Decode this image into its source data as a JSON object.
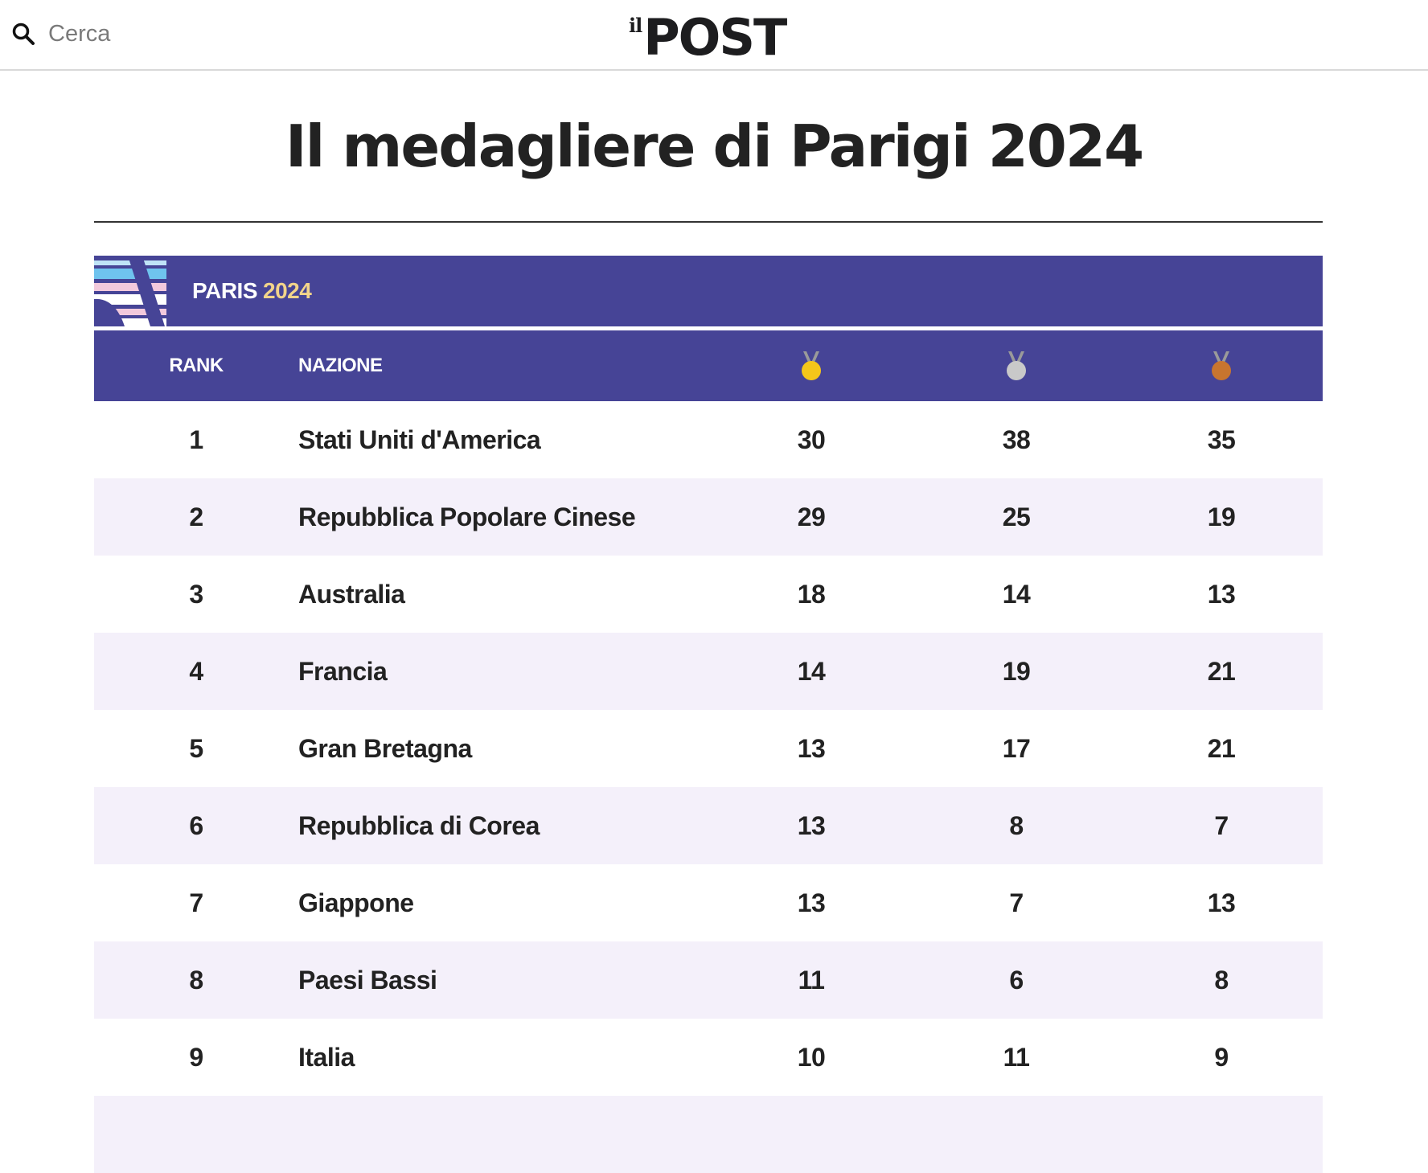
{
  "header": {
    "search_label": "Cerca",
    "logo_il": "il",
    "logo_post": "POST"
  },
  "headline": "Il medagliere di Parigi 2024",
  "widget": {
    "brand_paris": "PARIS",
    "brand_year": "2024",
    "columns": {
      "rank": "RANK",
      "nation": "NAZIONE"
    },
    "medal_icons": {
      "gold": "#f4c61a",
      "silver": "#c9c9c9",
      "bronze": "#c8752f",
      "ribbon": "#9a9a9a"
    },
    "rows": [
      {
        "rank": "1",
        "nation": "Stati Uniti d'America",
        "gold": "30",
        "silver": "38",
        "bronze": "35"
      },
      {
        "rank": "2",
        "nation": "Repubblica Popolare Cinese",
        "gold": "29",
        "silver": "25",
        "bronze": "19"
      },
      {
        "rank": "3",
        "nation": "Australia",
        "gold": "18",
        "silver": "14",
        "bronze": "13"
      },
      {
        "rank": "4",
        "nation": "Francia",
        "gold": "14",
        "silver": "19",
        "bronze": "21"
      },
      {
        "rank": "5",
        "nation": "Gran Bretagna",
        "gold": "13",
        "silver": "17",
        "bronze": "21"
      },
      {
        "rank": "6",
        "nation": "Repubblica di Corea",
        "gold": "13",
        "silver": "8",
        "bronze": "7"
      },
      {
        "rank": "7",
        "nation": "Giappone",
        "gold": "13",
        "silver": "7",
        "bronze": "13"
      },
      {
        "rank": "8",
        "nation": "Paesi Bassi",
        "gold": "11",
        "silver": "6",
        "bronze": "8"
      },
      {
        "rank": "9",
        "nation": "Italia",
        "gold": "10",
        "silver": "11",
        "bronze": "9"
      }
    ]
  },
  "colors": {
    "brand_bar": "#464496",
    "row_alt": "#f4f0fa",
    "year_accent": "#f2d48a"
  }
}
